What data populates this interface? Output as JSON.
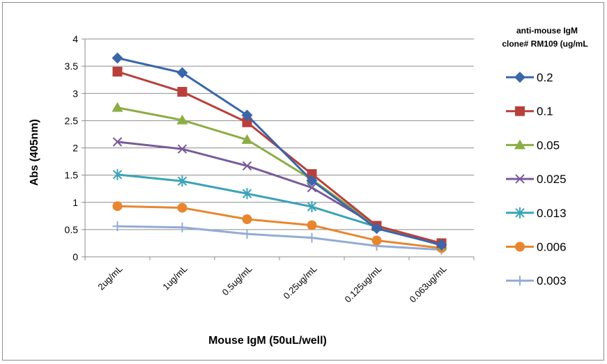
{
  "chart_data": {
    "type": "line",
    "xlabel": "Mouse IgM (50uL/well)",
    "ylabel": "Abs (405nm)",
    "legend_title": [
      "anti-mouse IgM",
      "clone# RM109 (ug/mL"
    ],
    "legend_position": "right",
    "grid": true,
    "ylim": [
      0,
      4
    ],
    "yticks": [
      "0",
      "0.5",
      "1",
      "1.5",
      "2",
      "2.5",
      "3",
      "3.5",
      "4"
    ],
    "categories": [
      "2ug/mL",
      "1ug/mL",
      "0.5ug/mL",
      "0.25ug/mL",
      "0.125ug/mL",
      "0.063ug/mL"
    ],
    "series": [
      {
        "name": "0.2",
        "color": "#3a66aa",
        "marker": "diamond",
        "values": [
          3.65,
          3.38,
          2.6,
          1.4,
          0.52,
          0.22
        ]
      },
      {
        "name": "0.1",
        "color": "#b8403c",
        "marker": "square",
        "values": [
          3.4,
          3.03,
          2.47,
          1.52,
          0.57,
          0.25
        ]
      },
      {
        "name": "0.05",
        "color": "#8cad46",
        "marker": "triangle",
        "values": [
          2.74,
          2.51,
          2.15,
          1.42,
          0.56,
          0.22
        ]
      },
      {
        "name": "0.025",
        "color": "#7a5a9a",
        "marker": "x",
        "values": [
          2.11,
          1.98,
          1.67,
          1.27,
          0.57,
          0.23
        ]
      },
      {
        "name": "0.013",
        "color": "#3aa3b8",
        "marker": "star",
        "values": [
          1.51,
          1.39,
          1.16,
          0.92,
          0.55,
          0.21
        ]
      },
      {
        "name": "0.006",
        "color": "#e8862f",
        "marker": "circle",
        "values": [
          0.93,
          0.9,
          0.69,
          0.58,
          0.3,
          0.16
        ]
      },
      {
        "name": "0.003",
        "color": "#93abd6",
        "marker": "plus",
        "values": [
          0.56,
          0.54,
          0.42,
          0.35,
          0.2,
          0.13
        ]
      }
    ]
  }
}
